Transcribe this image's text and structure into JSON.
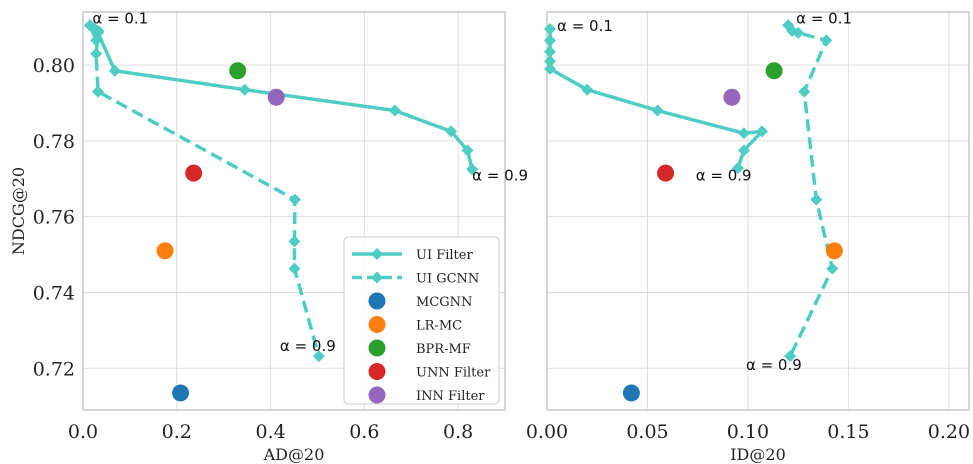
{
  "chart_data": [
    {
      "type": "scatter",
      "xlabel": "AD@20",
      "ylabel": "NDCG@20",
      "xlim": [
        0.0,
        0.9
      ],
      "ylim": [
        0.709,
        0.814
      ],
      "xticks": [
        "0.0",
        "0.2",
        "0.4",
        "0.6",
        "0.8"
      ],
      "yticks": [
        "0.72",
        "0.74",
        "0.76",
        "0.78",
        "0.80"
      ],
      "grid": true,
      "legend_position": "lower-right",
      "annotations": [
        {
          "text": "α = 0.1",
          "x": 0.02,
          "y": 0.811
        },
        {
          "text": "α = 0.9",
          "x": 0.83,
          "y": 0.7695
        },
        {
          "text": "α = 0.9",
          "x": 0.42,
          "y": 0.7245
        }
      ],
      "lines": [
        {
          "name": "UI Filter",
          "style": "solid",
          "color": "#4ECDC4",
          "x": [
            0.015,
            0.025,
            0.032,
            0.068,
            0.345,
            0.665,
            0.785,
            0.82,
            0.83
          ],
          "y": [
            0.8105,
            0.8095,
            0.8085,
            0.7985,
            0.7935,
            0.788,
            0.7825,
            0.7775,
            0.7725
          ]
        },
        {
          "name": "UI GCNN",
          "style": "dashed",
          "color": "#4ECDC4",
          "x": [
            0.015,
            0.028,
            0.033,
            0.028,
            0.032,
            0.452,
            0.451,
            0.451,
            0.503
          ],
          "y": [
            0.8105,
            0.8065,
            0.809,
            0.803,
            0.793,
            0.7645,
            0.7535,
            0.7463,
            0.7232
          ]
        }
      ],
      "points": [
        {
          "name": "MCGNN",
          "color": "#1F77B4",
          "x": 0.208,
          "y": 0.7135
        },
        {
          "name": "LR-MC",
          "color": "#FF7F0E",
          "x": 0.175,
          "y": 0.751
        },
        {
          "name": "BPR-MF",
          "color": "#2CA02C",
          "x": 0.33,
          "y": 0.7985
        },
        {
          "name": "UNN Filter",
          "color": "#D62728",
          "x": 0.236,
          "y": 0.7715
        },
        {
          "name": "INN Filter",
          "color": "#9467BD",
          "x": 0.412,
          "y": 0.7915
        }
      ]
    },
    {
      "type": "scatter",
      "xlabel": "ID@20",
      "ylabel": "",
      "xlim": [
        0.0,
        0.21
      ],
      "ylim": [
        0.709,
        0.814
      ],
      "xticks": [
        "0.00",
        "0.05",
        "0.10",
        "0.15",
        "0.20"
      ],
      "grid": true,
      "annotations": [
        {
          "text": "α = 0.1",
          "x": 0.005,
          "y": 0.809
        },
        {
          "text": "α = 0.1",
          "x": 0.124,
          "y": 0.811
        },
        {
          "text": "α = 0.9",
          "x": 0.074,
          "y": 0.7695
        },
        {
          "text": "α = 0.9",
          "x": 0.099,
          "y": 0.7195
        }
      ],
      "lines": [
        {
          "name": "UI Filter",
          "style": "solid",
          "color": "#4ECDC4",
          "x": [
            0.0015,
            0.0015,
            0.0015,
            0.0015,
            0.0015,
            0.02,
            0.055,
            0.098,
            0.107,
            0.098,
            0.095
          ],
          "y": [
            0.8095,
            0.8065,
            0.8035,
            0.801,
            0.799,
            0.7935,
            0.788,
            0.782,
            0.7825,
            0.7775,
            0.7728
          ]
        },
        {
          "name": "UI GCNN",
          "style": "dashed",
          "color": "#4ECDC4",
          "x": [
            0.12,
            0.122,
            0.125,
            0.139,
            0.128,
            0.134,
            0.142,
            0.121
          ],
          "y": [
            0.8105,
            0.809,
            0.8085,
            0.8065,
            0.793,
            0.7645,
            0.7463,
            0.7232
          ]
        }
      ],
      "points": [
        {
          "name": "MCGNN",
          "color": "#1F77B4",
          "x": 0.042,
          "y": 0.7135
        },
        {
          "name": "LR-MC",
          "color": "#FF7F0E",
          "x": 0.143,
          "y": 0.751
        },
        {
          "name": "BPR-MF",
          "color": "#2CA02C",
          "x": 0.113,
          "y": 0.7985
        },
        {
          "name": "UNN Filter",
          "color": "#D62728",
          "x": 0.059,
          "y": 0.7715
        },
        {
          "name": "INN Filter",
          "color": "#9467BD",
          "x": 0.092,
          "y": 0.7915
        }
      ]
    }
  ]
}
